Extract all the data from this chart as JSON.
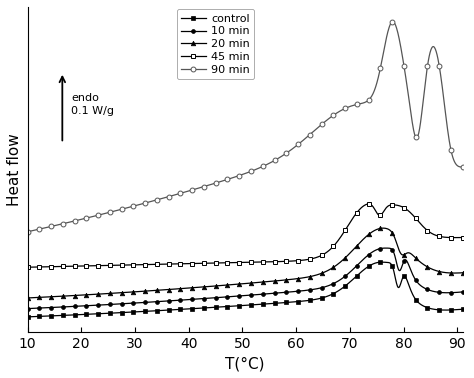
{
  "xlabel": "T(°C)",
  "ylabel": "Heat flow",
  "xlim": [
    10,
    91
  ],
  "xticks": [
    10,
    20,
    30,
    40,
    50,
    60,
    70,
    80,
    90
  ],
  "legend_labels": [
    "control",
    "10 min",
    "20 min",
    "45 min",
    "90 min"
  ],
  "anno_endo": "endo\n0.1 W/g",
  "background_color": "#ffffff",
  "line_color": "#000000"
}
